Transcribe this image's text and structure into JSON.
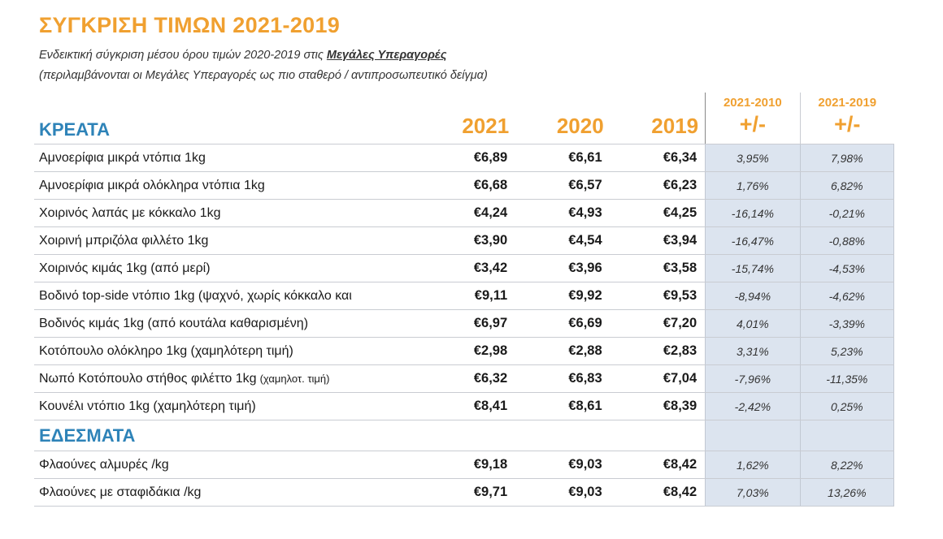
{
  "title": "ΣΥΓΚΡΙΣΗ ΤΙΜΩΝ 2021-2019",
  "subtitle": "Ενδεικτική σύγκριση μέσου όρου τιμών 2020-2019 στις",
  "subtitle_highlight": "Μεγάλες Υπεραγορές",
  "subtitle2": "(περιλαμβάνονται οι Μεγάλες Υπεραγορές ως πιο σταθερό / αντιπροσωπευτικό δείγμα)",
  "columns": {
    "y1": "2021",
    "y2": "2020",
    "y3": "2019",
    "p1_years": "2021-2010",
    "p1_sign": "+/-",
    "p2_years": "2021-2019",
    "p2_sign": "+/-"
  },
  "sections": [
    {
      "name": "ΚΡΕΑΤΑ",
      "rows": [
        {
          "name": "Αμνοερίφια μικρά ντόπια 1kg",
          "note": "",
          "y1": "€6,89",
          "y2": "€6,61",
          "y3": "€6,34",
          "p1": "3,95%",
          "p2": "7,98%"
        },
        {
          "name": "Αμνοερίφια μικρά ολόκληρα ντόπια 1kg",
          "note": "",
          "y1": "€6,68",
          "y2": "€6,57",
          "y3": "€6,23",
          "p1": "1,76%",
          "p2": "6,82%"
        },
        {
          "name": "Χοιρινός λαπάς με κόκκαλο 1kg",
          "note": "",
          "y1": "€4,24",
          "y2": "€4,93",
          "y3": "€4,25",
          "p1": "-16,14%",
          "p2": "-0,21%"
        },
        {
          "name": "Χοιρινή μπριζόλα φιλλέτο 1kg",
          "note": "",
          "y1": "€3,90",
          "y2": "€4,54",
          "y3": "€3,94",
          "p1": "-16,47%",
          "p2": "-0,88%"
        },
        {
          "name": "Χοιρινός κιμάς 1kg (από μερί)",
          "note": "",
          "y1": "€3,42",
          "y2": "€3,96",
          "y3": "€3,58",
          "p1": "-15,74%",
          "p2": "-4,53%"
        },
        {
          "name": "Βοδινό top-side ντόπιο 1kg (ψαχνό, χωρίς κόκκαλο και",
          "note": "",
          "y1": "€9,11",
          "y2": "€9,92",
          "y3": "€9,53",
          "p1": "-8,94%",
          "p2": "-4,62%"
        },
        {
          "name": "Βοδινός κιμάς 1kg (από κουτάλα καθαρισμένη)",
          "note": "",
          "y1": "€6,97",
          "y2": "€6,69",
          "y3": "€7,20",
          "p1": "4,01%",
          "p2": "-3,39%"
        },
        {
          "name": "Κοτόπουλο ολόκληρο 1kg (χαμηλότερη τιμή)",
          "note": "",
          "y1": "€2,98",
          "y2": "€2,88",
          "y3": "€2,83",
          "p1": "3,31%",
          "p2": "5,23%"
        },
        {
          "name": "Νωπό Κοτόπουλο στήθος φιλέττο 1kg",
          "note": "(χαμηλοτ. τιμή)",
          "y1": "€6,32",
          "y2": "€6,83",
          "y3": "€7,04",
          "p1": "-7,96%",
          "p2": "-11,35%"
        },
        {
          "name": "Κουνέλι ντόπιο 1kg (χαμηλότερη τιμή)",
          "note": "",
          "y1": "€8,41",
          "y2": "€8,61",
          "y3": "€8,39",
          "p1": "-2,42%",
          "p2": "0,25%"
        }
      ]
    },
    {
      "name": "ΕΔΕΣΜΑΤΑ",
      "rows": [
        {
          "name": "Φλαούνες αλμυρές /kg",
          "note": "",
          "y1": "€9,18",
          "y2": "€9,03",
          "y3": "€8,42",
          "p1": "1,62%",
          "p2": "8,22%"
        },
        {
          "name": "Φλαούνες με σταφιδάκια /kg",
          "note": "",
          "y1": "€9,71",
          "y2": "€9,03",
          "y3": "€8,42",
          "p1": "7,03%",
          "p2": "13,26%"
        }
      ]
    }
  ]
}
